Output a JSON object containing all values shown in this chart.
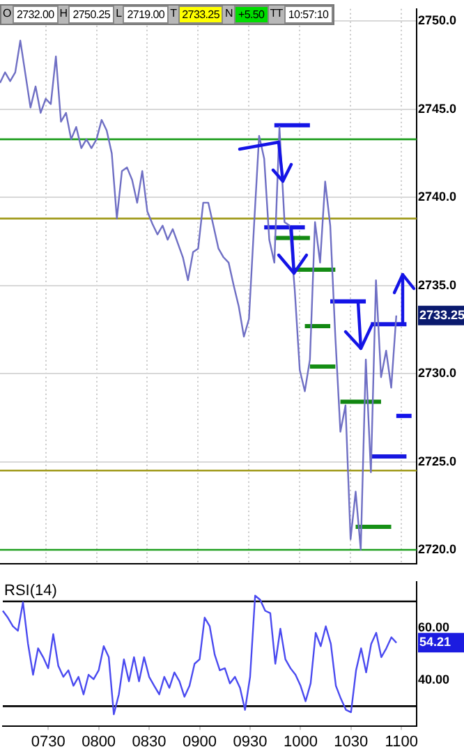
{
  "chart_data": [
    {
      "type": "line",
      "tick_labels": "y",
      "grid": true,
      "ylim": [
        2719.2,
        2750.7
      ],
      "categories": [
        null,
        null,
        null,
        null,
        null,
        null,
        null,
        null,
        null,
        "0730",
        null,
        null,
        null,
        null,
        null,
        null,
        null,
        null,
        null,
        "0800",
        null,
        null,
        null,
        null,
        null,
        null,
        null,
        null,
        null,
        "0830",
        null,
        null,
        null,
        null,
        null,
        null,
        null,
        null,
        null,
        "0900",
        null,
        null,
        null,
        null,
        null,
        null,
        null,
        null,
        null,
        "0930",
        null,
        null,
        null,
        null,
        null,
        null,
        null,
        null,
        null,
        "1000",
        null,
        null,
        null,
        null,
        null,
        null,
        null,
        null,
        null,
        "1030",
        null,
        null,
        null,
        null,
        null,
        null,
        null,
        null,
        null,
        "1100",
        null,
        null,
        null
      ],
      "yticks": [
        {
          "value": 2720,
          "label": "2720.0"
        },
        {
          "value": 2725,
          "label": "2725.0"
        },
        {
          "value": 2730,
          "label": "2730.0"
        },
        {
          "value": 2735,
          "label": "2735.0"
        },
        {
          "value": 2740,
          "label": "2740.0"
        },
        {
          "value": 2745,
          "label": "2745.0"
        },
        {
          "value": 2750,
          "label": "2750.0"
        }
      ],
      "annotations": [
        "O",
        "2732.00",
        "H",
        "2750.25",
        "L",
        "2719.00",
        "T",
        "2733.25",
        "N",
        "+5.50",
        "TT",
        "10:57:10",
        "2733.25"
      ],
      "ref_lines": [
        {
          "axis": "y",
          "value": 2743.3,
          "color": "#1e9e1e"
        },
        {
          "axis": "y",
          "value": 2738.8,
          "color": "#a09a1a"
        },
        {
          "axis": "y",
          "value": 2724.5,
          "color": "#a09a1a"
        },
        {
          "axis": "y",
          "value": 2720.0,
          "color": "#1e9e1e"
        }
      ],
      "series": [
        {
          "color": "#6f6fc4",
          "values": [
            2746.5,
            2747.1,
            2746.6,
            2747.1,
            2748.9,
            2747.0,
            2745.1,
            2746.3,
            2744.8,
            2745.6,
            2745.3,
            2748.0,
            2744.3,
            2744.8,
            2743.3,
            2744.0,
            2742.8,
            2743.3,
            2742.8,
            2743.3,
            2744.4,
            2743.8,
            2742.5,
            2738.8,
            2741.5,
            2741.7,
            2741.0,
            2739.7,
            2741.5,
            2739.2,
            2738.5,
            2737.9,
            2738.4,
            2737.6,
            2738.2,
            2737.4,
            2736.6,
            2735.3,
            2736.9,
            2737.1,
            2739.7,
            2739.7,
            2738.4,
            2737.1,
            2736.6,
            2736.3,
            2735.0,
            2733.8,
            2732.1,
            2733.1,
            2738.4,
            2743.5,
            2742.2,
            2737.6,
            2736.3,
            2744.0,
            2738.6,
            2738.4,
            2734.8,
            2730.2,
            2729.0,
            2730.8,
            2738.6,
            2736.3,
            2740.9,
            2738.4,
            2732.1,
            2726.7,
            2728.2,
            2720.6,
            2723.3,
            2720.0,
            2730.8,
            2724.4,
            2735.3,
            2729.8,
            2731.3,
            2729.2,
            2733.3,
            null,
            null,
            null,
            null
          ]
        },
        {
          "color": "#138a13",
          "values": [
            null,
            null,
            null,
            null,
            null,
            null,
            null,
            null,
            null,
            null,
            null,
            null,
            null,
            null,
            null,
            null,
            null,
            null,
            null,
            null,
            null,
            null,
            null,
            null,
            null,
            null,
            null,
            null,
            null,
            null,
            null,
            null,
            null,
            null,
            null,
            null,
            null,
            null,
            null,
            null,
            null,
            null,
            null,
            null,
            null,
            null,
            null,
            null,
            null,
            null,
            null,
            null,
            null,
            null,
            2737.7,
            2737.7,
            2737.7,
            2737.7,
            2737.7,
            2737.7,
            2737.7,
            2737.7,
            null,
            null,
            null,
            null,
            null,
            null,
            null,
            null,
            null,
            null,
            null,
            null,
            null,
            null,
            null,
            null,
            null,
            null,
            null,
            null,
            null
          ]
        },
        {
          "color": "#148c14",
          "values": [
            null,
            null,
            null,
            null,
            null,
            null,
            null,
            null,
            null,
            null,
            null,
            null,
            null,
            null,
            null,
            null,
            null,
            null,
            null,
            null,
            null,
            null,
            null,
            null,
            null,
            null,
            null,
            null,
            null,
            null,
            null,
            null,
            null,
            null,
            null,
            null,
            null,
            null,
            null,
            null,
            null,
            null,
            null,
            null,
            null,
            null,
            null,
            null,
            null,
            null,
            null,
            null,
            null,
            null,
            null,
            null,
            null,
            null,
            2735.9,
            2735.9,
            2735.9,
            2735.9,
            2735.9,
            2735.9,
            2735.9,
            2735.9,
            2735.9,
            null,
            null,
            null,
            null,
            null,
            null,
            null,
            null,
            null,
            null,
            null,
            null,
            null,
            null,
            null,
            null
          ]
        },
        {
          "color": "#128812",
          "values": [
            null,
            null,
            null,
            null,
            null,
            null,
            null,
            null,
            null,
            null,
            null,
            null,
            null,
            null,
            null,
            null,
            null,
            null,
            null,
            null,
            null,
            null,
            null,
            null,
            null,
            null,
            null,
            null,
            null,
            null,
            null,
            null,
            null,
            null,
            null,
            null,
            null,
            null,
            null,
            null,
            null,
            null,
            null,
            null,
            null,
            null,
            null,
            null,
            null,
            null,
            null,
            null,
            null,
            null,
            null,
            null,
            null,
            null,
            null,
            null,
            2732.7,
            2732.7,
            2732.7,
            2732.7,
            2732.7,
            2732.7,
            null,
            null,
            null,
            null,
            null,
            null,
            null,
            null,
            null,
            null,
            null,
            null,
            null,
            null,
            null,
            null,
            null
          ]
        },
        {
          "color": "#158e15",
          "values": [
            null,
            null,
            null,
            null,
            null,
            null,
            null,
            null,
            null,
            null,
            null,
            null,
            null,
            null,
            null,
            null,
            null,
            null,
            null,
            null,
            null,
            null,
            null,
            null,
            null,
            null,
            null,
            null,
            null,
            null,
            null,
            null,
            null,
            null,
            null,
            null,
            null,
            null,
            null,
            null,
            null,
            null,
            null,
            null,
            null,
            null,
            null,
            null,
            null,
            null,
            null,
            null,
            null,
            null,
            null,
            null,
            null,
            null,
            null,
            null,
            null,
            2730.4,
            2730.4,
            2730.4,
            2730.4,
            2730.4,
            2730.4,
            null,
            null,
            null,
            null,
            null,
            null,
            null,
            null,
            null,
            null,
            null,
            null,
            null,
            null,
            null,
            null
          ]
        },
        {
          "color": "#118611",
          "values": [
            null,
            null,
            null,
            null,
            null,
            null,
            null,
            null,
            null,
            null,
            null,
            null,
            null,
            null,
            null,
            null,
            null,
            null,
            null,
            null,
            null,
            null,
            null,
            null,
            null,
            null,
            null,
            null,
            null,
            null,
            null,
            null,
            null,
            null,
            null,
            null,
            null,
            null,
            null,
            null,
            null,
            null,
            null,
            null,
            null,
            null,
            null,
            null,
            null,
            null,
            null,
            null,
            null,
            null,
            null,
            null,
            null,
            null,
            null,
            null,
            null,
            null,
            null,
            null,
            null,
            null,
            null,
            2728.4,
            2728.4,
            2728.4,
            2728.4,
            2728.4,
            2728.4,
            2728.4,
            2728.4,
            2728.4,
            null,
            null,
            null,
            null,
            null,
            null,
            null
          ]
        },
        {
          "color": "#169016",
          "values": [
            null,
            null,
            null,
            null,
            null,
            null,
            null,
            null,
            null,
            null,
            null,
            null,
            null,
            null,
            null,
            null,
            null,
            null,
            null,
            null,
            null,
            null,
            null,
            null,
            null,
            null,
            null,
            null,
            null,
            null,
            null,
            null,
            null,
            null,
            null,
            null,
            null,
            null,
            null,
            null,
            null,
            null,
            null,
            null,
            null,
            null,
            null,
            null,
            null,
            null,
            null,
            null,
            null,
            null,
            null,
            null,
            null,
            null,
            null,
            null,
            null,
            null,
            null,
            null,
            null,
            null,
            null,
            null,
            null,
            null,
            2721.3,
            2721.3,
            2721.3,
            2721.3,
            2721.3,
            2721.3,
            2721.3,
            2721.3,
            null,
            null,
            null,
            null,
            null
          ]
        },
        {
          "color": "#1414e6",
          "values": [
            null,
            null,
            null,
            null,
            null,
            null,
            null,
            null,
            null,
            null,
            null,
            null,
            null,
            null,
            null,
            null,
            null,
            null,
            null,
            null,
            null,
            null,
            null,
            null,
            null,
            null,
            null,
            null,
            null,
            null,
            null,
            null,
            null,
            null,
            null,
            null,
            null,
            null,
            null,
            null,
            null,
            null,
            null,
            null,
            null,
            null,
            null,
            null,
            null,
            null,
            null,
            null,
            null,
            null,
            2744.1,
            2744.1,
            2744.1,
            2744.1,
            2744.1,
            2744.1,
            2744.1,
            2744.1,
            null,
            null,
            null,
            null,
            null,
            null,
            null,
            null,
            null,
            null,
            null,
            null,
            null,
            null,
            null,
            null,
            null,
            null,
            null,
            null,
            null
          ]
        },
        {
          "color": "#1515e4",
          "values": [
            null,
            null,
            null,
            null,
            null,
            null,
            null,
            null,
            null,
            null,
            null,
            null,
            null,
            null,
            null,
            null,
            null,
            null,
            null,
            null,
            null,
            null,
            null,
            null,
            null,
            null,
            null,
            null,
            null,
            null,
            null,
            null,
            null,
            null,
            null,
            null,
            null,
            null,
            null,
            null,
            null,
            null,
            null,
            null,
            null,
            null,
            null,
            null,
            null,
            null,
            null,
            null,
            2738.3,
            2738.3,
            2738.3,
            2738.3,
            2738.3,
            2738.3,
            2738.3,
            2738.3,
            2738.3,
            null,
            null,
            null,
            null,
            null,
            null,
            null,
            null,
            null,
            null,
            null,
            null,
            null,
            null,
            null,
            null,
            null,
            null,
            null,
            null,
            null,
            null
          ]
        },
        {
          "color": "#1313e8",
          "values": [
            null,
            null,
            null,
            null,
            null,
            null,
            null,
            null,
            null,
            null,
            null,
            null,
            null,
            null,
            null,
            null,
            null,
            null,
            null,
            null,
            null,
            null,
            null,
            null,
            null,
            null,
            null,
            null,
            null,
            null,
            null,
            null,
            null,
            null,
            null,
            null,
            null,
            null,
            null,
            null,
            null,
            null,
            null,
            null,
            null,
            null,
            null,
            null,
            null,
            null,
            null,
            null,
            null,
            null,
            null,
            null,
            null,
            null,
            null,
            null,
            null,
            null,
            null,
            null,
            null,
            2734.1,
            2734.1,
            2734.1,
            2734.1,
            2734.1,
            2734.1,
            2734.1,
            2734.1,
            null,
            null,
            null,
            null,
            null,
            null,
            null,
            null,
            null,
            null
          ]
        },
        {
          "color": "#1616e2",
          "values": [
            null,
            null,
            null,
            null,
            null,
            null,
            null,
            null,
            null,
            null,
            null,
            null,
            null,
            null,
            null,
            null,
            null,
            null,
            null,
            null,
            null,
            null,
            null,
            null,
            null,
            null,
            null,
            null,
            null,
            null,
            null,
            null,
            null,
            null,
            null,
            null,
            null,
            null,
            null,
            null,
            null,
            null,
            null,
            null,
            null,
            null,
            null,
            null,
            null,
            null,
            null,
            null,
            null,
            null,
            null,
            null,
            null,
            null,
            null,
            null,
            null,
            null,
            null,
            null,
            null,
            null,
            null,
            null,
            null,
            null,
            null,
            null,
            null,
            2732.8,
            2732.8,
            2732.8,
            2732.8,
            2732.8,
            2732.8,
            2732.8,
            2732.8,
            null,
            null
          ]
        },
        {
          "color": "#1212ea",
          "values": [
            null,
            null,
            null,
            null,
            null,
            null,
            null,
            null,
            null,
            null,
            null,
            null,
            null,
            null,
            null,
            null,
            null,
            null,
            null,
            null,
            null,
            null,
            null,
            null,
            null,
            null,
            null,
            null,
            null,
            null,
            null,
            null,
            null,
            null,
            null,
            null,
            null,
            null,
            null,
            null,
            null,
            null,
            null,
            null,
            null,
            null,
            null,
            null,
            null,
            null,
            null,
            null,
            null,
            null,
            null,
            null,
            null,
            null,
            null,
            null,
            null,
            null,
            null,
            null,
            null,
            null,
            null,
            null,
            null,
            null,
            null,
            null,
            null,
            null,
            null,
            null,
            null,
            null,
            2727.6,
            2727.6,
            2727.6,
            2727.6,
            null
          ]
        },
        {
          "color": "#1717e0",
          "values": [
            null,
            null,
            null,
            null,
            null,
            null,
            null,
            null,
            null,
            null,
            null,
            null,
            null,
            null,
            null,
            null,
            null,
            null,
            null,
            null,
            null,
            null,
            null,
            null,
            null,
            null,
            null,
            null,
            null,
            null,
            null,
            null,
            null,
            null,
            null,
            null,
            null,
            null,
            null,
            null,
            null,
            null,
            null,
            null,
            null,
            null,
            null,
            null,
            null,
            null,
            null,
            null,
            null,
            null,
            null,
            null,
            null,
            null,
            null,
            null,
            null,
            null,
            null,
            null,
            null,
            null,
            null,
            null,
            null,
            null,
            null,
            null,
            null,
            2725.3,
            2725.3,
            2725.3,
            2725.3,
            2725.3,
            2725.3,
            2725.3,
            2725.3,
            null,
            null
          ]
        }
      ]
    },
    {
      "type": "line",
      "title": "RSI(14)",
      "ylim": [
        22.5,
        77.5
      ],
      "categories": [
        null,
        null,
        null,
        null,
        null,
        null,
        null,
        null,
        null,
        "0730",
        null,
        null,
        null,
        null,
        null,
        null,
        null,
        null,
        null,
        "0800",
        null,
        null,
        null,
        null,
        null,
        null,
        null,
        null,
        null,
        "0830",
        null,
        null,
        null,
        null,
        null,
        null,
        null,
        null,
        null,
        "0900",
        null,
        null,
        null,
        null,
        null,
        null,
        null,
        null,
        null,
        "0930",
        null,
        null,
        null,
        null,
        null,
        null,
        null,
        null,
        null,
        "1000",
        null,
        null,
        null,
        null,
        null,
        null,
        null,
        null,
        null,
        "1030",
        null,
        null,
        null,
        null,
        null,
        null,
        null,
        null,
        null,
        "1100",
        null,
        null,
        null
      ],
      "yticks": [
        {
          "value": 40,
          "label": "40.00"
        },
        {
          "value": 60,
          "label": "60.00"
        }
      ],
      "annotations": [
        "54.21"
      ],
      "ref_lines": [
        {
          "axis": "y",
          "value": 70,
          "color": "#000000"
        },
        {
          "axis": "y",
          "value": 30,
          "color": "#000000"
        }
      ],
      "series": [
        {
          "color": "#4a4af0",
          "values": [
            66.4,
            63.8,
            60.5,
            58.8,
            69.7,
            53.8,
            42.0,
            52.1,
            48.7,
            44.5,
            57.5,
            45.4,
            41.2,
            43.7,
            37.8,
            41.2,
            34.5,
            42.0,
            40.3,
            43.7,
            52.9,
            48.7,
            26.9,
            34.5,
            47.9,
            39.5,
            48.7,
            39.5,
            48.7,
            41.2,
            37.8,
            34.5,
            41.2,
            37.0,
            42.9,
            39.5,
            33.6,
            37.8,
            46.2,
            47.9,
            63.8,
            60.5,
            49.6,
            43.7,
            44.5,
            38.7,
            41.2,
            37.0,
            28.6,
            41.2,
            72.2,
            70.6,
            66.4,
            65.5,
            46.2,
            59.6,
            47.9,
            44.5,
            42.0,
            37.8,
            31.9,
            38.7,
            58.0,
            52.9,
            60.5,
            53.8,
            37.8,
            32.8,
            28.6,
            27.7,
            43.7,
            52.1,
            42.9,
            53.8,
            58.0,
            48.7,
            52.1,
            56.3,
            54.21,
            null,
            null,
            null,
            null
          ]
        }
      ]
    }
  ]
}
